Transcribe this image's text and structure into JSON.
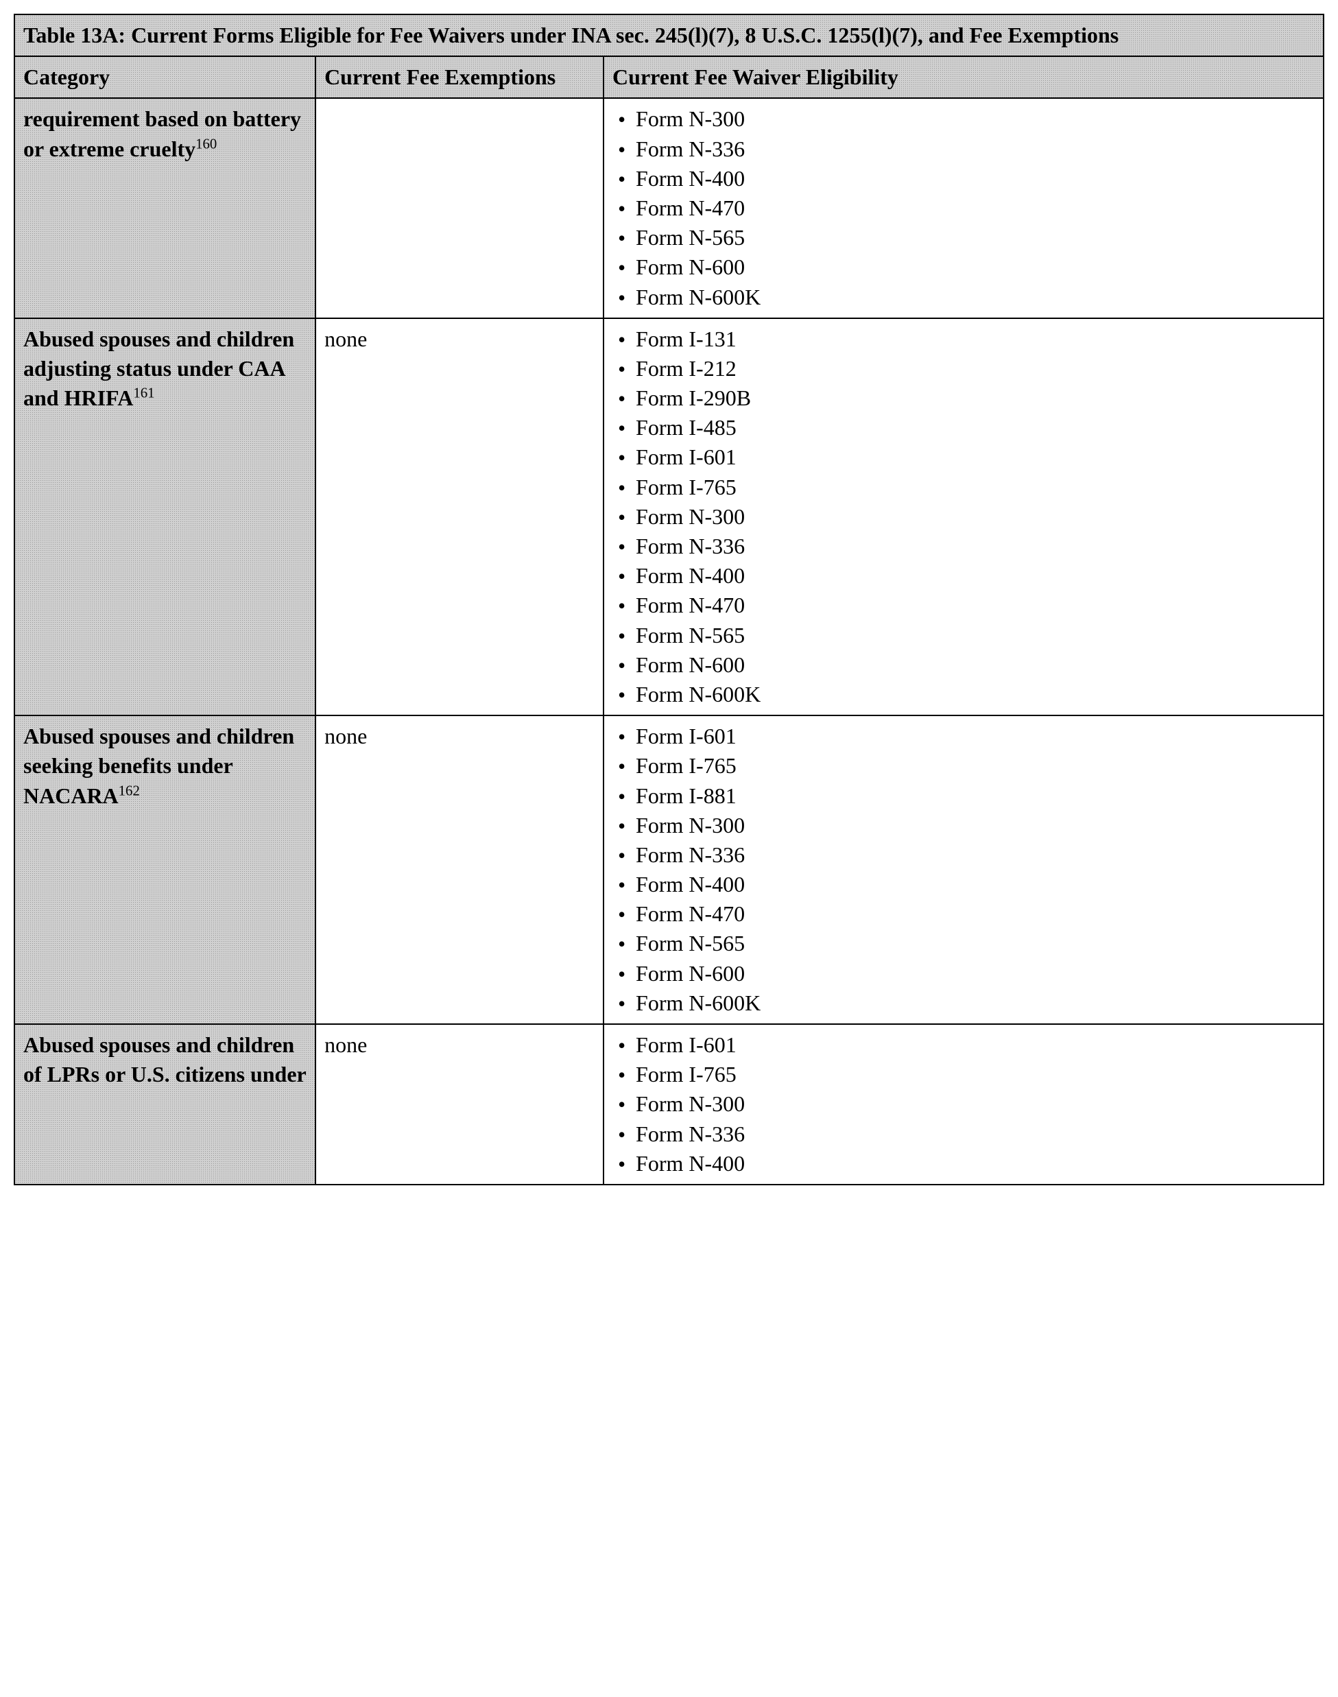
{
  "table": {
    "title": "Table 13A: Current Forms Eligible for Fee Waivers under INA sec. 245(l)(7), 8 U.S.C. 1255(l)(7), and Fee Exemptions",
    "headers": {
      "category": "Category",
      "exemptions": "Current Fee Exemptions",
      "eligibility": "Current Fee Waiver Eligibility"
    },
    "rows": [
      {
        "category_text": "requirement based on battery or extreme cruelty",
        "category_footnote": "160",
        "exemptions": "",
        "forms": [
          "Form N-300",
          "Form N-336",
          "Form N-400",
          "Form N-470",
          "Form N-565",
          "Form N-600",
          "Form N-600K"
        ]
      },
      {
        "category_text": "Abused spouses and children adjusting status under CAA and HRIFA",
        "category_footnote": "161",
        "exemptions": "none",
        "forms": [
          "Form I-131",
          "Form I-212",
          "Form I-290B",
          "Form I-485",
          "Form I-601",
          "Form I-765",
          "Form N-300",
          "Form N-336",
          "Form N-400",
          "Form N-470",
          "Form N-565",
          "Form N-600",
          "Form N-600K"
        ]
      },
      {
        "category_text": "Abused spouses and children seeking benefits under NACARA",
        "category_footnote": "162",
        "exemptions": "none",
        "forms": [
          "Form I-601",
          "Form I-765",
          "Form I-881",
          "Form N-300",
          "Form N-336",
          "Form N-400",
          "Form N-470",
          "Form N-565",
          "Form N-600",
          "Form N-600K"
        ]
      },
      {
        "category_text": "Abused spouses and children of LPRs or U.S. citizens under",
        "category_footnote": "",
        "exemptions": "none",
        "forms": [
          "Form I-601",
          "Form I-765",
          "Form N-300",
          "Form N-336",
          "Form N-400"
        ]
      }
    ]
  }
}
